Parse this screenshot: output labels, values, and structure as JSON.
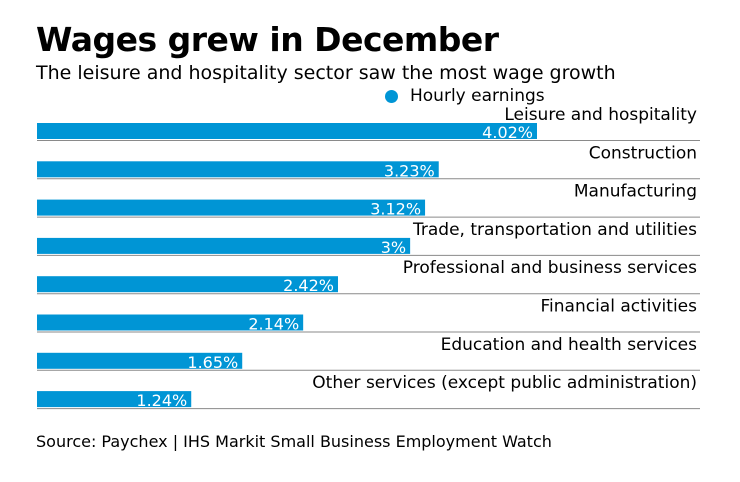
{
  "chart_data": {
    "type": "bar",
    "orientation": "horizontal",
    "title": "Wages grew in December",
    "subtitle": "The leisure and hospitality sector saw the most wage growth",
    "legend": {
      "entries": [
        "Hourly earnings"
      ],
      "placement": "top-right"
    },
    "categories": [
      "Leisure and hospitality",
      "Construction",
      "Manufacturing",
      "Trade, transportation and utilities",
      "Professional and business services",
      "Financial activities",
      "Education and health services",
      "Other services (except public administration)"
    ],
    "series": [
      {
        "name": "Hourly earnings",
        "values": [
          4.02,
          3.23,
          3.12,
          3.0,
          2.42,
          2.14,
          1.65,
          1.24
        ],
        "color": "#0095d5"
      }
    ],
    "data_labels": [
      "4.02%",
      "3.23%",
      "3.12%",
      "3%",
      "2.42%",
      "2.14%",
      "1.65%",
      "1.24%"
    ],
    "xlabel": "",
    "ylabel": "",
    "xlim": [
      0,
      5.35
    ],
    "grid": false,
    "source": "Source: Paychex | IHS Markit Small Business Employment Watch"
  },
  "colors": {
    "bar": "#0095d5",
    "rule": "#8a8a8a",
    "label_on_bar": "#ffffff"
  }
}
